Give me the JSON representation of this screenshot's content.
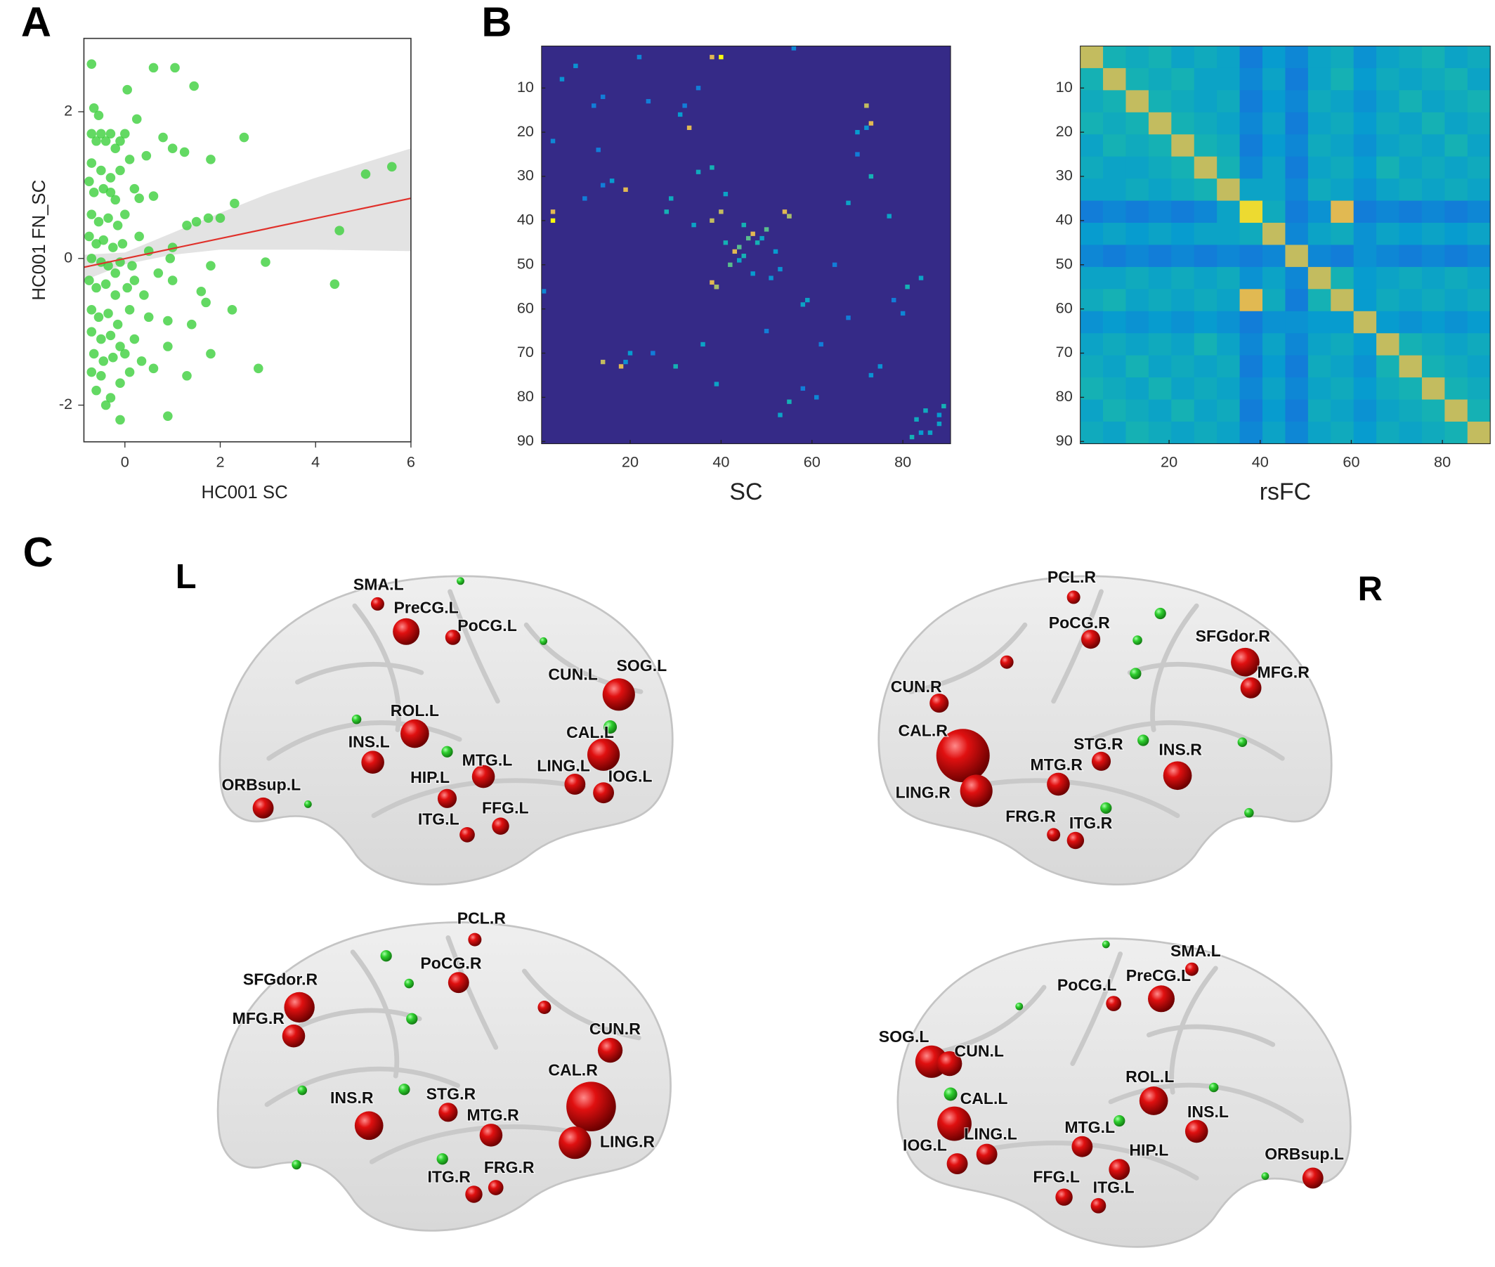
{
  "panel_labels": [
    "A",
    "B",
    "C"
  ],
  "chart_data": [
    {
      "type": "scatter",
      "xlabel": "HC001 SC",
      "ylabel": "HC001 FN_SC",
      "x": [
        -0.7,
        0.6,
        1.05,
        1.45,
        0.05,
        -0.65,
        0.25,
        0.8,
        1.25,
        1.0,
        1.8,
        2.5,
        5.05,
        5.6,
        4.5,
        2.3,
        1.5,
        1.3,
        1.75,
        2.0,
        0.6,
        0.3,
        -0.3,
        0.95,
        1.0,
        2.95,
        1.8,
        4.4,
        1.0,
        1.6,
        1.7,
        2.25,
        0.9,
        0.5,
        1.4,
        0.2,
        0.9,
        1.8,
        2.8,
        1.3,
        0.35,
        0.6,
        -0.1,
        0.9,
        -0.1,
        -0.4,
        -0.6,
        -0.3,
        0,
        -0.2,
        -0.7,
        -0.6,
        -0.5,
        -0.4,
        -0.3,
        -0.2,
        -0.1,
        0,
        -0.7,
        -0.5,
        -0.3,
        -0.1,
        0.1,
        -0.65,
        -0.45,
        -0.2,
        0,
        -0.7,
        -0.55,
        -0.35,
        -0.15,
        -0.75,
        -0.6,
        -0.45,
        -0.25,
        -0.05,
        -0.7,
        -0.5,
        -0.35,
        -0.1,
        0.15,
        -0.75,
        -0.6,
        -0.4,
        -0.2,
        0.05,
        -0.7,
        -0.55,
        -0.35,
        -0.15,
        0.1,
        -0.7,
        -0.5,
        -0.3,
        -0.1,
        -0.65,
        -0.45,
        -0.25,
        -0.7,
        -0.5,
        0.2,
        0.3,
        0.4,
        0.5,
        0.7,
        0.2,
        0.45,
        -0.55,
        -0.75,
        0.1
      ],
      "values": [
        2.65,
        2.6,
        2.6,
        2.35,
        2.3,
        2.05,
        1.9,
        1.65,
        1.45,
        1.5,
        1.35,
        1.65,
        1.15,
        1.25,
        0.38,
        0.75,
        0.5,
        0.45,
        0.55,
        0.55,
        0.85,
        0.82,
        0.9,
        0.0,
        0.15,
        -0.05,
        -0.1,
        -0.35,
        -0.3,
        -0.45,
        -0.6,
        -0.7,
        -0.85,
        -0.8,
        -0.9,
        -1.1,
        -1.2,
        -1.3,
        -1.5,
        -1.6,
        -1.4,
        -1.5,
        -1.7,
        -2.15,
        -2.2,
        -2.0,
        -1.8,
        -1.9,
        -1.3,
        -0.2,
        1.7,
        1.6,
        1.7,
        1.6,
        1.7,
        1.5,
        1.6,
        1.7,
        1.3,
        1.2,
        1.1,
        1.2,
        1.35,
        0.9,
        0.95,
        0.8,
        0.6,
        0.6,
        0.5,
        0.55,
        0.45,
        0.3,
        0.2,
        0.25,
        0.15,
        0.2,
        0.0,
        -0.05,
        -0.1,
        -0.05,
        -0.1,
        -0.3,
        -0.4,
        -0.35,
        -0.5,
        -0.4,
        -0.7,
        -0.8,
        -0.75,
        -0.9,
        -0.7,
        -1.0,
        -1.1,
        -1.05,
        -1.2,
        -1.3,
        -1.4,
        -1.35,
        -1.55,
        -1.6,
        -0.3,
        0.3,
        -0.5,
        0.1,
        -0.2,
        0.95,
        1.4,
        1.95,
        1.05,
        -1.55
      ],
      "color": "#3ccf3c",
      "xlim": [
        -0.86,
        6
      ],
      "ylim": [
        -2.5,
        3
      ],
      "xticks": [
        0,
        2,
        4,
        6
      ],
      "yticks": [
        -2,
        0,
        2
      ],
      "fit": {
        "x": [
          -0.86,
          6
        ],
        "values": [
          -0.12,
          0.82
        ],
        "color": "#e0302a"
      },
      "band": {
        "x": [
          -0.86,
          0,
          1,
          2,
          3,
          4,
          5,
          6
        ],
        "upper": [
          0.05,
          0.08,
          0.35,
          0.62,
          0.88,
          1.1,
          1.3,
          1.5
        ],
        "lower": [
          -0.3,
          -0.08,
          0.05,
          0.12,
          0.12,
          0.12,
          0.11,
          0.1
        ],
        "color": "#d9d9d9"
      }
    },
    {
      "type": "sparse_heatmap",
      "xlabel": "SC",
      "colormap": "parula",
      "clim": [
        0,
        1
      ],
      "xlim": [
        0.5,
        90.5
      ],
      "ylim": [
        0.5,
        90.5
      ],
      "xticks": [
        20,
        40,
        60,
        80
      ],
      "yticks": [
        10,
        20,
        30,
        40,
        50,
        60,
        70,
        80,
        90
      ],
      "rows": [
        3,
        5,
        12,
        14,
        16,
        18,
        19,
        22,
        24,
        28,
        33,
        35,
        38,
        40,
        39,
        41,
        43,
        44,
        46,
        48,
        50,
        51,
        54,
        55,
        53,
        56,
        59,
        61,
        65,
        70,
        72,
        73,
        75,
        77,
        78,
        81,
        83,
        86,
        88,
        89,
        34,
        36,
        47,
        62,
        25,
        10
      ],
      "cols": [
        40,
        8,
        14,
        32,
        31,
        73,
        72,
        3,
        13,
        38,
        19,
        29,
        3,
        38,
        55,
        45,
        47,
        49,
        44,
        45,
        42,
        53,
        38,
        39,
        84,
        1,
        58,
        80,
        50,
        20,
        14,
        30,
        73,
        39,
        58,
        55,
        85,
        88,
        84,
        82,
        41,
        68,
        52,
        68,
        70,
        35
      ],
      "values": [
        1,
        0.4,
        0.3,
        0.3,
        0.45,
        0.9,
        0.4,
        0.35,
        0.3,
        0.6,
        0.9,
        0.55,
        0.9,
        0.85,
        0.9,
        0.6,
        0.9,
        0.5,
        0.7,
        0.6,
        0.7,
        0.4,
        0.9,
        0.8,
        0.5,
        0.35,
        0.5,
        0.35,
        0.3,
        0.45,
        0.85,
        0.6,
        0.4,
        0.5,
        0.3,
        0.6,
        0.55,
        0.5,
        0.45,
        0.6,
        0.5,
        0.5,
        0.45,
        0.3,
        0.3,
        0.3
      ]
    },
    {
      "type": "heatmap",
      "xlabel": "rsFC",
      "colormap": "parula",
      "clim": [
        0,
        1
      ],
      "xlim": [
        0.5,
        90.5
      ],
      "ylim": [
        0.5,
        90.5
      ],
      "xticks": [
        20,
        40,
        60,
        80
      ],
      "yticks": [
        10,
        20,
        30,
        40,
        50,
        60,
        70,
        80,
        90
      ],
      "values": [
        [
          0.85,
          0.6,
          0.55,
          0.6,
          0.5,
          0.55,
          0.5,
          0.3,
          0.45,
          0.35,
          0.5,
          0.55,
          0.4,
          0.5,
          0.55,
          0.6,
          0.5,
          0.55
        ],
        [
          0.6,
          0.85,
          0.6,
          0.55,
          0.6,
          0.5,
          0.5,
          0.35,
          0.5,
          0.3,
          0.5,
          0.6,
          0.45,
          0.55,
          0.5,
          0.55,
          0.6,
          0.5
        ],
        [
          0.55,
          0.6,
          0.85,
          0.6,
          0.55,
          0.5,
          0.55,
          0.3,
          0.45,
          0.35,
          0.55,
          0.5,
          0.4,
          0.5,
          0.6,
          0.5,
          0.55,
          0.6
        ],
        [
          0.6,
          0.55,
          0.6,
          0.85,
          0.6,
          0.55,
          0.5,
          0.35,
          0.5,
          0.3,
          0.5,
          0.55,
          0.45,
          0.55,
          0.5,
          0.6,
          0.5,
          0.55
        ],
        [
          0.5,
          0.6,
          0.55,
          0.6,
          0.85,
          0.6,
          0.55,
          0.3,
          0.45,
          0.35,
          0.55,
          0.5,
          0.4,
          0.5,
          0.55,
          0.5,
          0.6,
          0.5
        ],
        [
          0.55,
          0.5,
          0.5,
          0.55,
          0.6,
          0.85,
          0.6,
          0.35,
          0.5,
          0.3,
          0.5,
          0.55,
          0.45,
          0.6,
          0.5,
          0.55,
          0.5,
          0.55
        ],
        [
          0.5,
          0.5,
          0.55,
          0.5,
          0.55,
          0.6,
          0.85,
          0.5,
          0.5,
          0.35,
          0.55,
          0.5,
          0.4,
          0.5,
          0.55,
          0.5,
          0.55,
          0.5
        ],
        [
          0.3,
          0.35,
          0.3,
          0.35,
          0.3,
          0.35,
          0.5,
          0.95,
          0.55,
          0.3,
          0.4,
          0.9,
          0.3,
          0.35,
          0.3,
          0.35,
          0.3,
          0.35
        ],
        [
          0.45,
          0.5,
          0.45,
          0.5,
          0.45,
          0.5,
          0.5,
          0.55,
          0.85,
          0.35,
          0.5,
          0.55,
          0.4,
          0.5,
          0.45,
          0.5,
          0.45,
          0.5
        ],
        [
          0.35,
          0.3,
          0.35,
          0.3,
          0.35,
          0.3,
          0.35,
          0.3,
          0.35,
          0.85,
          0.35,
          0.3,
          0.4,
          0.35,
          0.3,
          0.35,
          0.3,
          0.35
        ],
        [
          0.5,
          0.5,
          0.55,
          0.5,
          0.55,
          0.5,
          0.55,
          0.4,
          0.5,
          0.35,
          0.85,
          0.6,
          0.45,
          0.5,
          0.55,
          0.5,
          0.55,
          0.5
        ],
        [
          0.55,
          0.6,
          0.5,
          0.55,
          0.5,
          0.55,
          0.5,
          0.9,
          0.55,
          0.3,
          0.6,
          0.85,
          0.45,
          0.55,
          0.5,
          0.55,
          0.5,
          0.55
        ],
        [
          0.4,
          0.45,
          0.4,
          0.45,
          0.4,
          0.45,
          0.4,
          0.3,
          0.4,
          0.4,
          0.45,
          0.45,
          0.85,
          0.45,
          0.4,
          0.45,
          0.4,
          0.45
        ],
        [
          0.5,
          0.55,
          0.5,
          0.55,
          0.5,
          0.6,
          0.5,
          0.35,
          0.5,
          0.35,
          0.5,
          0.55,
          0.45,
          0.85,
          0.6,
          0.55,
          0.5,
          0.55
        ],
        [
          0.55,
          0.5,
          0.6,
          0.5,
          0.55,
          0.5,
          0.55,
          0.3,
          0.45,
          0.3,
          0.55,
          0.5,
          0.4,
          0.6,
          0.85,
          0.6,
          0.55,
          0.5
        ],
        [
          0.6,
          0.55,
          0.5,
          0.6,
          0.5,
          0.55,
          0.5,
          0.35,
          0.5,
          0.35,
          0.5,
          0.55,
          0.45,
          0.55,
          0.6,
          0.85,
          0.6,
          0.55
        ],
        [
          0.5,
          0.6,
          0.55,
          0.5,
          0.6,
          0.5,
          0.55,
          0.3,
          0.45,
          0.3,
          0.55,
          0.5,
          0.4,
          0.5,
          0.55,
          0.6,
          0.85,
          0.6
        ],
        [
          0.55,
          0.5,
          0.6,
          0.55,
          0.5,
          0.55,
          0.5,
          0.35,
          0.5,
          0.35,
          0.5,
          0.55,
          0.45,
          0.55,
          0.5,
          0.55,
          0.6,
          0.85
        ]
      ]
    }
  ],
  "brain": {
    "hemisphere_labels": [
      "L",
      "R"
    ],
    "views": [
      {
        "labels": [
          "SMA.L",
          "PreCG.L",
          "PoCG.L",
          "SOG.L",
          "CUN.L",
          "ROL.L",
          "INS.L",
          "CAL.L",
          "MTG.L",
          "LING.L",
          "HIP.L",
          "IOG.L",
          "ORBsup.L",
          "FFG.L",
          "ITG.L"
        ]
      },
      {
        "labels": [
          "PCL.R",
          "PoCG.R",
          "SFGdor.R",
          "MFG.R",
          "CUN.R",
          "CAL.R",
          "STG.R",
          "INS.R",
          "MTG.R",
          "LING.R",
          "FRG.R",
          "ITG.R"
        ]
      },
      {
        "labels": [
          "PCL.R",
          "PoCG.R",
          "SFGdor.R",
          "MFG.R",
          "CUN.R",
          "CAL.R",
          "STG.R",
          "INS.R",
          "MTG.R",
          "LING.R",
          "FRG.R",
          "ITG.R"
        ]
      },
      {
        "labels": [
          "SMA.L",
          "PreCG.L",
          "PoCG.L",
          "SOG.L",
          "CUN.L",
          "ROL.L",
          "CAL.L",
          "INS.L",
          "MTG.L",
          "LING.L",
          "IOG.L",
          "HIP.L",
          "ORBsup.L",
          "FFG.L",
          "ITG.L"
        ]
      }
    ]
  }
}
